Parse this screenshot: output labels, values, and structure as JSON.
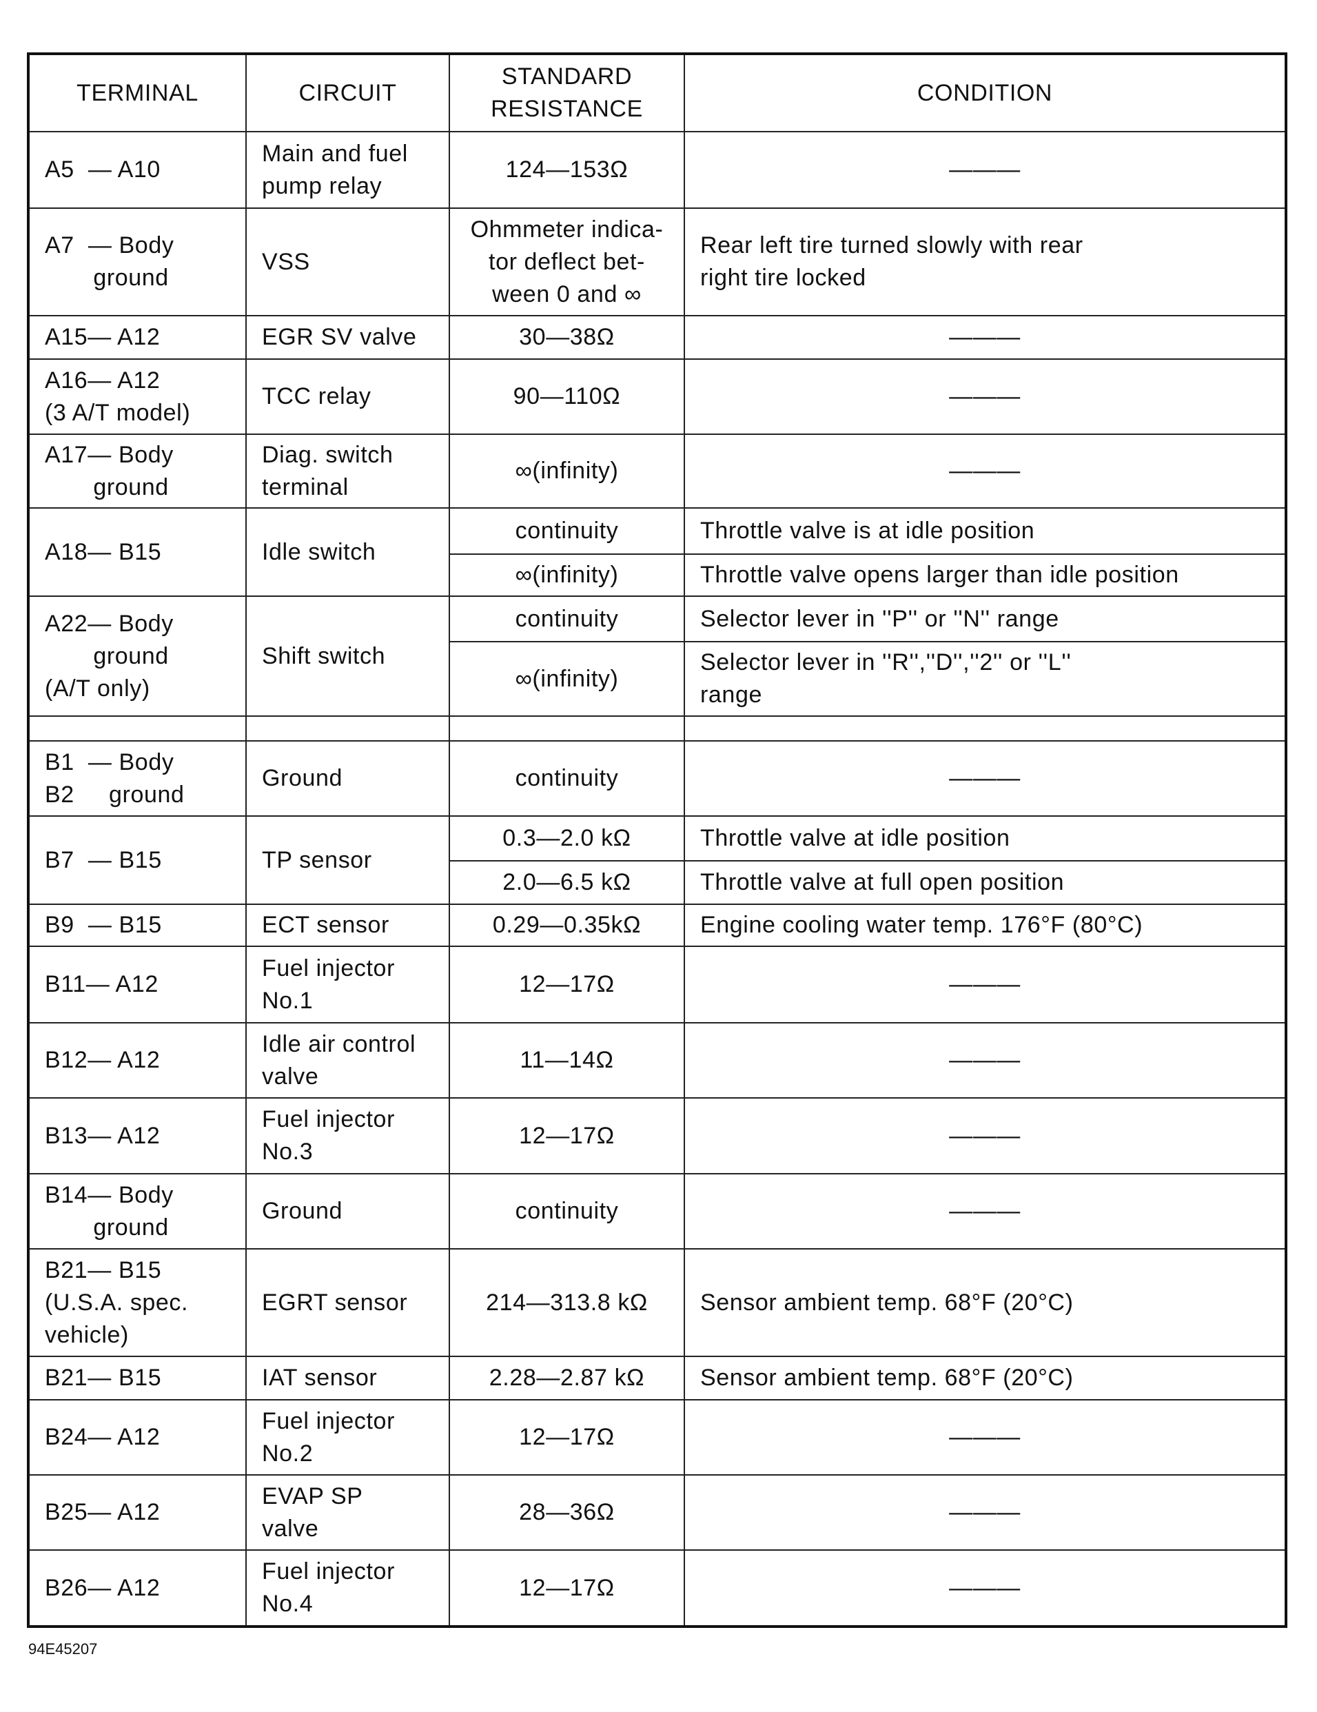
{
  "headers": {
    "terminal": "TERMINAL",
    "circuit": "CIRCUIT",
    "resistance": "STANDARD\nRESISTANCE",
    "condition": "CONDITION"
  },
  "rows": [
    {
      "terminal": "A5  — A10",
      "circuit": "Main and fuel\npump relay",
      "checks": [
        {
          "resistance": "124—153Ω",
          "condition": "———"
        }
      ]
    },
    {
      "terminal": "A7  — Body\n       ground",
      "circuit": "VSS",
      "checks": [
        {
          "resistance": "Ohmmeter indica-\ntor deflect bet-\nween 0 and ∞",
          "condition": "Rear left tire turned slowly with rear\nright tire locked"
        }
      ]
    },
    {
      "terminal": "A15— A12",
      "circuit": "EGR SV valve",
      "checks": [
        {
          "resistance": "30—38Ω",
          "condition": "———"
        }
      ]
    },
    {
      "terminal": "A16— A12\n(3 A/T model)",
      "circuit": "TCC relay",
      "checks": [
        {
          "resistance": "90—110Ω",
          "condition": "———"
        }
      ]
    },
    {
      "terminal": "A17— Body\n       ground",
      "circuit": "Diag. switch\nterminal",
      "checks": [
        {
          "resistance": "∞(infinity)",
          "condition": "———"
        }
      ]
    },
    {
      "terminal": "A18— B15",
      "circuit": "Idle switch",
      "checks": [
        {
          "resistance": "continuity",
          "condition": "Throttle valve is at idle position"
        },
        {
          "resistance": "∞(infinity)",
          "condition": "Throttle valve opens larger than idle position"
        }
      ]
    },
    {
      "terminal": "A22— Body\n       ground\n(A/T only)",
      "circuit": "Shift switch",
      "checks": [
        {
          "resistance": "continuity",
          "condition": "Selector lever in ''P'' or ''N'' range"
        },
        {
          "resistance": "∞(infinity)",
          "condition": "Selector lever in ''R'',''D'',''2'' or ''L''\nrange"
        }
      ]
    },
    {
      "terminal": "",
      "circuit": "",
      "checks": [
        {
          "resistance": "",
          "condition": ""
        }
      ]
    },
    {
      "terminal": "B1  — Body\nB2     ground",
      "circuit": "Ground",
      "checks": [
        {
          "resistance": "continuity",
          "condition": "———"
        }
      ]
    },
    {
      "terminal": "B7  — B15",
      "circuit": "TP sensor",
      "checks": [
        {
          "resistance": "0.3—2.0 kΩ",
          "condition": "Throttle valve at idle position"
        },
        {
          "resistance": "2.0—6.5 kΩ",
          "condition": "Throttle valve at full open position"
        }
      ]
    },
    {
      "terminal": "B9  — B15",
      "circuit": "ECT sensor",
      "checks": [
        {
          "resistance": "0.29—0.35kΩ",
          "condition": "Engine cooling water temp. 176°F (80°C)"
        }
      ]
    },
    {
      "terminal": "B11— A12",
      "circuit": "Fuel injector\nNo.1",
      "checks": [
        {
          "resistance": "12—17Ω",
          "condition": "———"
        }
      ]
    },
    {
      "terminal": "B12— A12",
      "circuit": "Idle air control\nvalve",
      "checks": [
        {
          "resistance": "11—14Ω",
          "condition": "———"
        }
      ]
    },
    {
      "terminal": "B13— A12",
      "circuit": "Fuel injector\nNo.3",
      "checks": [
        {
          "resistance": "12—17Ω",
          "condition": "———"
        }
      ]
    },
    {
      "terminal": "B14— Body\n       ground",
      "circuit": "Ground",
      "checks": [
        {
          "resistance": "continuity",
          "condition": "———"
        }
      ]
    },
    {
      "terminal": "B21— B15\n(U.S.A. spec.\nvehicle)",
      "circuit": "EGRT sensor",
      "checks": [
        {
          "resistance": "214—313.8 kΩ",
          "condition": "Sensor ambient temp. 68°F (20°C)"
        }
      ]
    },
    {
      "terminal": "B21— B15",
      "circuit": "IAT sensor",
      "checks": [
        {
          "resistance": "2.28—2.87 kΩ",
          "condition": "Sensor ambient temp. 68°F (20°C)"
        }
      ]
    },
    {
      "terminal": "B24— A12",
      "circuit": "Fuel injector\nNo.2",
      "checks": [
        {
          "resistance": "12—17Ω",
          "condition": "———"
        }
      ]
    },
    {
      "terminal": "B25— A12",
      "circuit": "EVAP SP\nvalve",
      "checks": [
        {
          "resistance": "28—36Ω",
          "condition": "———"
        }
      ]
    },
    {
      "terminal": "B26— A12",
      "circuit": "Fuel injector\nNo.4",
      "checks": [
        {
          "resistance": "12—17Ω",
          "condition": "———"
        }
      ]
    }
  ],
  "figure_id": "94E45207"
}
